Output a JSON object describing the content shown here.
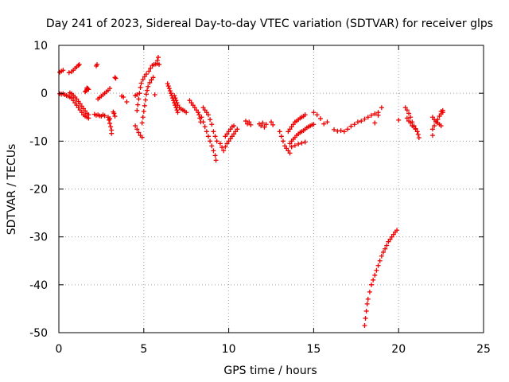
{
  "chart_data": {
    "type": "scatter",
    "title": "Day 241 of 2023, Sidereal Day-to-day VTEC variation (SDTVAR) for receiver glps",
    "xlabel": "GPS time / hours",
    "ylabel": "SDTVAR / TECUs",
    "xlim": [
      0,
      25
    ],
    "ylim": [
      -50,
      10
    ],
    "xticks": [
      0,
      5,
      10,
      15,
      20,
      25
    ],
    "yticks": [
      10,
      0,
      -10,
      -20,
      -30,
      -40,
      -50
    ],
    "grid": true,
    "marker": "+",
    "colors": {
      "points": "#ee0000",
      "grid": "#a0a0a0",
      "axes": "#000000"
    },
    "series": [
      {
        "name": "SDTVAR",
        "points": [
          [
            0.05,
            4.4
          ],
          [
            0.15,
            4.6
          ],
          [
            0.25,
            4.8
          ],
          [
            0.6,
            4.3
          ],
          [
            0.75,
            4.5
          ],
          [
            0.85,
            4.8
          ],
          [
            0.95,
            5.2
          ],
          [
            1.05,
            5.5
          ],
          [
            1.15,
            5.8
          ],
          [
            1.2,
            6.0
          ],
          [
            2.2,
            5.7
          ],
          [
            2.25,
            6.0
          ],
          [
            0.05,
            -0.1
          ],
          [
            0.15,
            -0.2
          ],
          [
            0.25,
            -0.1
          ],
          [
            0.35,
            -0.3
          ],
          [
            0.45,
            -0.5
          ],
          [
            0.55,
            -0.6
          ],
          [
            0.65,
            -0.8
          ],
          [
            0.75,
            -1.0
          ],
          [
            0.85,
            -1.5
          ],
          [
            0.95,
            -2.0
          ],
          [
            1.05,
            -2.5
          ],
          [
            1.15,
            -3.0
          ],
          [
            1.25,
            -3.5
          ],
          [
            1.35,
            -4.0
          ],
          [
            1.45,
            -4.5
          ],
          [
            1.55,
            -4.8
          ],
          [
            1.65,
            -5.0
          ],
          [
            1.75,
            -5.2
          ],
          [
            0.65,
            0.1
          ],
          [
            0.75,
            -0.1
          ],
          [
            0.85,
            -0.4
          ],
          [
            0.95,
            -0.8
          ],
          [
            1.05,
            -1.2
          ],
          [
            1.15,
            -1.7
          ],
          [
            1.25,
            -2.2
          ],
          [
            1.35,
            -2.7
          ],
          [
            1.45,
            -3.2
          ],
          [
            1.55,
            -3.7
          ],
          [
            1.65,
            -4.2
          ],
          [
            1.75,
            -4.5
          ],
          [
            1.55,
            0.3
          ],
          [
            1.6,
            0.5
          ],
          [
            1.65,
            0.8
          ],
          [
            1.7,
            1.0
          ],
          [
            1.75,
            0.8
          ],
          [
            1.65,
            1.1
          ],
          [
            2.1,
            -4.4
          ],
          [
            2.2,
            -4.6
          ],
          [
            2.3,
            -4.5
          ],
          [
            2.4,
            -4.7
          ],
          [
            2.5,
            -4.8
          ],
          [
            2.6,
            -4.5
          ],
          [
            2.7,
            -4.7
          ],
          [
            2.3,
            -1.2
          ],
          [
            2.4,
            -0.9
          ],
          [
            2.5,
            -0.6
          ],
          [
            2.6,
            -0.3
          ],
          [
            2.7,
            0.0
          ],
          [
            2.8,
            0.3
          ],
          [
            2.9,
            0.6
          ],
          [
            3.0,
            1.0
          ],
          [
            2.9,
            -5.0
          ],
          [
            3.0,
            -5.3
          ],
          [
            2.95,
            -5.6
          ],
          [
            3.0,
            -6.3
          ],
          [
            3.05,
            -7.0
          ],
          [
            3.1,
            -7.7
          ],
          [
            3.1,
            -8.4
          ],
          [
            3.2,
            -3.9
          ],
          [
            3.25,
            -4.2
          ],
          [
            3.3,
            -4.8
          ],
          [
            3.3,
            3.3
          ],
          [
            3.35,
            3.1
          ],
          [
            3.7,
            -0.6
          ],
          [
            3.8,
            -0.8
          ],
          [
            4.0,
            -1.8
          ],
          [
            4.5,
            -0.5
          ],
          [
            4.6,
            -0.3
          ],
          [
            4.5,
            -6.8
          ],
          [
            4.6,
            -7.5
          ],
          [
            4.7,
            -8.2
          ],
          [
            4.8,
            -8.8
          ],
          [
            4.9,
            -9.2
          ],
          [
            4.9,
            -6.2
          ],
          [
            4.95,
            -5.0
          ],
          [
            5.0,
            -3.8
          ],
          [
            5.05,
            -2.6
          ],
          [
            5.1,
            -1.4
          ],
          [
            5.15,
            -0.2
          ],
          [
            5.2,
            0.6
          ],
          [
            5.25,
            1.4
          ],
          [
            5.35,
            2.2
          ],
          [
            5.45,
            2.8
          ],
          [
            5.55,
            3.3
          ],
          [
            4.6,
            -3.6
          ],
          [
            4.65,
            -2.4
          ],
          [
            4.7,
            -1.2
          ],
          [
            4.75,
            0.0
          ],
          [
            4.8,
            1.2
          ],
          [
            4.85,
            2.1
          ],
          [
            4.95,
            2.9
          ],
          [
            5.05,
            3.5
          ],
          [
            5.15,
            4.0
          ],
          [
            5.3,
            4.6
          ],
          [
            5.4,
            5.2
          ],
          [
            5.5,
            5.8
          ],
          [
            5.6,
            6.0
          ],
          [
            5.7,
            6.1
          ],
          [
            5.8,
            6.2
          ],
          [
            5.9,
            6.0
          ],
          [
            5.65,
            -0.3
          ],
          [
            5.8,
            6.8
          ],
          [
            5.85,
            7.5
          ],
          [
            6.4,
            2.0
          ],
          [
            6.45,
            1.5
          ],
          [
            6.5,
            1.0
          ],
          [
            6.55,
            0.5
          ],
          [
            6.6,
            0.0
          ],
          [
            6.65,
            -0.5
          ],
          [
            6.7,
            -1.0
          ],
          [
            6.75,
            -1.5
          ],
          [
            6.8,
            -2.0
          ],
          [
            6.85,
            -2.5
          ],
          [
            6.9,
            -3.0
          ],
          [
            6.95,
            -3.5
          ],
          [
            7.0,
            -4.0
          ],
          [
            6.8,
            -0.5
          ],
          [
            6.85,
            -1.0
          ],
          [
            6.9,
            -1.5
          ],
          [
            6.95,
            -2.0
          ],
          [
            7.0,
            -2.5
          ],
          [
            7.1,
            -3.0
          ],
          [
            7.2,
            -3.3
          ],
          [
            7.3,
            -3.5
          ],
          [
            7.4,
            -3.7
          ],
          [
            7.5,
            -4.0
          ],
          [
            7.7,
            -1.5
          ],
          [
            7.8,
            -2.0
          ],
          [
            7.9,
            -2.5
          ],
          [
            8.0,
            -3.0
          ],
          [
            8.1,
            -3.5
          ],
          [
            8.2,
            -4.0
          ],
          [
            8.25,
            -4.5
          ],
          [
            8.3,
            -5.2
          ],
          [
            8.35,
            -6.0
          ],
          [
            8.4,
            -5.0
          ],
          [
            8.5,
            -6.0
          ],
          [
            8.6,
            -7.0
          ],
          [
            8.7,
            -8.0
          ],
          [
            8.8,
            -9.0
          ],
          [
            8.9,
            -10.0
          ],
          [
            9.0,
            -11.0
          ],
          [
            9.1,
            -12.0
          ],
          [
            9.2,
            -13.0
          ],
          [
            9.25,
            -14.0
          ],
          [
            8.5,
            -3.0
          ],
          [
            8.6,
            -3.5
          ],
          [
            8.7,
            -4.0
          ],
          [
            8.8,
            -4.5
          ],
          [
            8.9,
            -5.5
          ],
          [
            9.0,
            -6.5
          ],
          [
            9.1,
            -8.0
          ],
          [
            9.2,
            -9.0
          ],
          [
            9.3,
            -10.0
          ],
          [
            9.5,
            -10.5
          ],
          [
            9.6,
            -11.3
          ],
          [
            9.7,
            -12.0
          ],
          [
            9.8,
            -11.2
          ],
          [
            9.9,
            -10.5
          ],
          [
            10.0,
            -10.0
          ],
          [
            10.1,
            -9.5
          ],
          [
            10.2,
            -9.0
          ],
          [
            10.3,
            -8.5
          ],
          [
            10.4,
            -8.0
          ],
          [
            10.5,
            -7.5
          ],
          [
            9.8,
            -9.0
          ],
          [
            9.9,
            -8.5
          ],
          [
            10.0,
            -8.0
          ],
          [
            10.1,
            -7.5
          ],
          [
            10.2,
            -7.0
          ],
          [
            10.3,
            -6.8
          ],
          [
            11.0,
            -5.8
          ],
          [
            11.1,
            -6.4
          ],
          [
            11.2,
            -6.0
          ],
          [
            11.3,
            -6.6
          ],
          [
            11.8,
            -6.4
          ],
          [
            11.9,
            -6.8
          ],
          [
            12.0,
            -6.2
          ],
          [
            12.1,
            -7.1
          ],
          [
            12.2,
            -6.5
          ],
          [
            12.5,
            -6.0
          ],
          [
            12.6,
            -6.6
          ],
          [
            13.0,
            -8.0
          ],
          [
            13.1,
            -9.0
          ],
          [
            13.2,
            -10.0
          ],
          [
            13.3,
            -11.0
          ],
          [
            13.4,
            -11.5
          ],
          [
            13.5,
            -12.0
          ],
          [
            13.6,
            -12.5
          ],
          [
            13.5,
            -8.0
          ],
          [
            13.6,
            -7.5
          ],
          [
            13.7,
            -7.0
          ],
          [
            13.8,
            -6.5
          ],
          [
            13.9,
            -6.0
          ],
          [
            14.0,
            -5.8
          ],
          [
            14.1,
            -5.5
          ],
          [
            14.2,
            -5.2
          ],
          [
            14.3,
            -5.0
          ],
          [
            14.4,
            -4.8
          ],
          [
            14.5,
            -4.5
          ],
          [
            13.6,
            -10.5
          ],
          [
            13.7,
            -10.0
          ],
          [
            13.8,
            -9.6
          ],
          [
            13.9,
            -9.2
          ],
          [
            14.0,
            -8.8
          ],
          [
            14.1,
            -8.5
          ],
          [
            14.2,
            -8.2
          ],
          [
            14.3,
            -8.0
          ],
          [
            14.4,
            -7.8
          ],
          [
            14.5,
            -7.5
          ],
          [
            14.6,
            -7.2
          ],
          [
            14.7,
            -7.0
          ],
          [
            14.8,
            -6.8
          ],
          [
            14.9,
            -6.6
          ],
          [
            15.0,
            -6.5
          ],
          [
            13.7,
            -11.2
          ],
          [
            13.9,
            -10.9
          ],
          [
            14.1,
            -10.6
          ],
          [
            14.3,
            -10.4
          ],
          [
            14.5,
            -10.2
          ],
          [
            15.0,
            -4.0
          ],
          [
            15.2,
            -4.5
          ],
          [
            15.4,
            -5.3
          ],
          [
            15.6,
            -6.4
          ],
          [
            15.8,
            -6.0
          ],
          [
            16.2,
            -7.6
          ],
          [
            16.4,
            -7.9
          ],
          [
            16.6,
            -7.8
          ],
          [
            16.8,
            -8.0
          ],
          [
            17.0,
            -7.5
          ],
          [
            17.2,
            -6.9
          ],
          [
            17.4,
            -6.5
          ],
          [
            17.6,
            -6.0
          ],
          [
            17.8,
            -5.8
          ],
          [
            18.0,
            -5.4
          ],
          [
            18.2,
            -5.0
          ],
          [
            18.4,
            -4.6
          ],
          [
            18.6,
            -4.3
          ],
          [
            18.8,
            -4.0
          ],
          [
            19.0,
            -3.0
          ],
          [
            18.6,
            -6.2
          ],
          [
            18.8,
            -4.6
          ],
          [
            18.0,
            -48.5
          ],
          [
            18.05,
            -47.0
          ],
          [
            18.1,
            -45.5
          ],
          [
            18.15,
            -44.0
          ],
          [
            18.2,
            -43.0
          ],
          [
            18.3,
            -41.5
          ],
          [
            18.4,
            -40.0
          ],
          [
            18.5,
            -39.0
          ],
          [
            18.6,
            -38.0
          ],
          [
            18.7,
            -37.0
          ],
          [
            18.8,
            -36.0
          ],
          [
            18.9,
            -35.0
          ],
          [
            19.0,
            -34.0
          ],
          [
            19.1,
            -33.2
          ],
          [
            19.2,
            -32.5
          ],
          [
            19.3,
            -31.8
          ],
          [
            19.4,
            -31.0
          ],
          [
            19.5,
            -30.5
          ],
          [
            19.6,
            -30.0
          ],
          [
            19.7,
            -29.5
          ],
          [
            19.8,
            -29.0
          ],
          [
            19.9,
            -28.6
          ],
          [
            20.0,
            -5.6
          ],
          [
            20.4,
            -3.0
          ],
          [
            20.5,
            -3.5
          ],
          [
            20.6,
            -4.2
          ],
          [
            20.7,
            -5.0
          ],
          [
            20.8,
            -6.0
          ],
          [
            20.9,
            -6.8
          ],
          [
            21.0,
            -7.5
          ],
          [
            21.1,
            -8.0
          ],
          [
            21.15,
            -8.6
          ],
          [
            21.2,
            -9.3
          ],
          [
            20.5,
            -5.2
          ],
          [
            20.6,
            -5.8
          ],
          [
            20.7,
            -6.2
          ],
          [
            20.8,
            -6.8
          ],
          [
            20.9,
            -7.0
          ],
          [
            21.0,
            -7.4
          ],
          [
            22.0,
            -5.0
          ],
          [
            22.1,
            -5.5
          ],
          [
            22.2,
            -5.8
          ],
          [
            22.3,
            -6.2
          ],
          [
            22.4,
            -6.5
          ],
          [
            22.5,
            -6.8
          ],
          [
            22.0,
            -7.5
          ],
          [
            22.1,
            -6.8
          ],
          [
            22.2,
            -6.0
          ],
          [
            22.3,
            -5.5
          ],
          [
            22.4,
            -4.8
          ],
          [
            22.5,
            -4.3
          ],
          [
            22.6,
            -4.0
          ],
          [
            22.5,
            -3.8
          ],
          [
            22.6,
            -3.6
          ],
          [
            22.0,
            -8.8
          ]
        ]
      }
    ]
  }
}
